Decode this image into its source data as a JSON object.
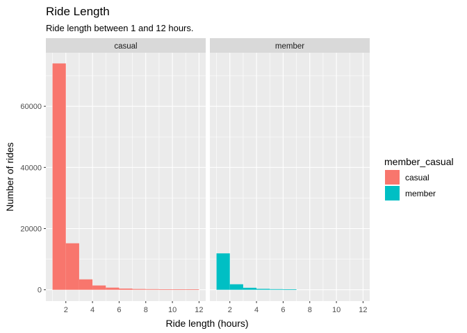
{
  "chart_data": {
    "type": "bar",
    "title": "Ride Length",
    "subtitle": "Ride length between 1 and 12 hours.",
    "xlabel": "Ride length (hours)",
    "ylabel": "Number of rides",
    "xlim": [
      0.5,
      12.5
    ],
    "ylim": [
      -3700,
      77500
    ],
    "x_ticks": [
      2,
      4,
      6,
      8,
      10,
      12
    ],
    "x_tick_labels": [
      "2",
      "4",
      "6",
      "8",
      "10",
      "12"
    ],
    "y_ticks": [
      0,
      20000,
      40000,
      60000
    ],
    "y_tick_labels": [
      "0",
      "20000",
      "40000",
      "60000"
    ],
    "grid": true,
    "bin_width": 1,
    "bin_centers": [
      1.5,
      2.5,
      3.5,
      4.5,
      5.5,
      6.5,
      7.5,
      8.5,
      9.5,
      10.5,
      11.5
    ],
    "legend": {
      "title": "member_casual",
      "position": "right",
      "entries": [
        {
          "label": "casual",
          "color": "#F8766D"
        },
        {
          "label": "member",
          "color": "#00BFC4"
        }
      ]
    },
    "panels": [
      {
        "strip_label": "casual",
        "color": "#F8766D",
        "values": [
          74000,
          15200,
          3400,
          1400,
          700,
          400,
          250,
          200,
          150,
          150,
          120
        ]
      },
      {
        "strip_label": "member",
        "color": "#00BFC4",
        "values": [
          11900,
          1800,
          650,
          300,
          200,
          160,
          0,
          0,
          0,
          0,
          0
        ]
      }
    ]
  }
}
